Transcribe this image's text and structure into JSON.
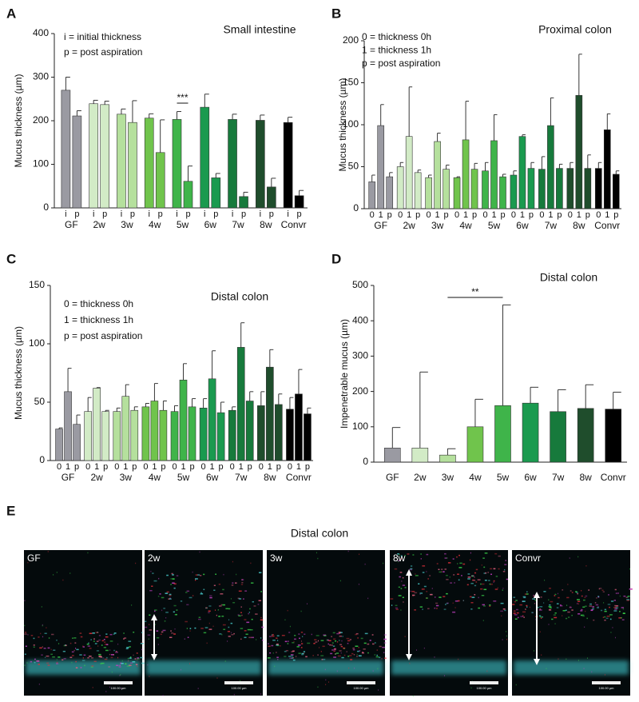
{
  "chart_data": [
    {
      "type": "bar",
      "panel": "A",
      "title": "Small intestine",
      "ylabel": "Mucus thickness (µm)",
      "legend_text": [
        "i = initial thickness",
        "p = post aspiration"
      ],
      "categories": [
        "GF",
        "2w",
        "3w",
        "4w",
        "5w",
        "6w",
        "7w",
        "8w",
        "Convr"
      ],
      "colors": [
        "#9a9aa2",
        "#d2ebc6",
        "#b5e09d",
        "#70c44c",
        "#3fb44a",
        "#1a9a4f",
        "#177a3c",
        "#1f4d2c",
        "#000000"
      ],
      "series": [
        {
          "name": "i",
          "values": [
            270,
            239,
            215,
            206,
            203,
            231,
            203,
            201,
            196
          ],
          "errors": [
            30,
            8,
            12,
            10,
            18,
            30,
            12,
            12,
            12
          ]
        },
        {
          "name": "p",
          "values": [
            211,
            237,
            196,
            127,
            61,
            69,
            26,
            48,
            28
          ],
          "errors": [
            12,
            8,
            50,
            75,
            35,
            10,
            10,
            20,
            12
          ]
        }
      ],
      "annotations": [
        {
          "text": "***"
        }
      ],
      "ylim": [
        0,
        400
      ],
      "yticks": [
        0,
        100,
        200,
        300,
        400
      ]
    },
    {
      "type": "bar",
      "panel": "B",
      "title": "Proximal colon",
      "ylabel": "Mucus thickness (µm)",
      "legend_text": [
        "0 = thickness 0h",
        "1 = thickness 1h",
        "p = post aspiration"
      ],
      "categories": [
        "GF",
        "2w",
        "3w",
        "4w",
        "5w",
        "6w",
        "7w",
        "8w",
        "Convr"
      ],
      "colors": [
        "#9a9aa2",
        "#d2ebc6",
        "#b5e09d",
        "#70c44c",
        "#3fb44a",
        "#1a9a4f",
        "#177a3c",
        "#1f4d2c",
        "#000000"
      ],
      "series": [
        {
          "name": "0",
          "values": [
            32,
            50,
            37,
            37,
            45,
            40,
            47,
            48,
            48
          ],
          "errors": [
            8,
            5,
            3,
            1,
            10,
            5,
            15,
            7,
            7
          ]
        },
        {
          "name": "1",
          "values": [
            99,
            86,
            80,
            82,
            81,
            86,
            99,
            135,
            94
          ],
          "errors": [
            25,
            59,
            10,
            46,
            31,
            2,
            33,
            49,
            19
          ]
        },
        {
          "name": "p",
          "values": [
            38,
            43,
            47,
            47,
            38,
            48,
            48,
            48,
            41
          ],
          "errors": [
            5,
            3,
            5,
            7,
            3,
            7,
            5,
            16,
            4
          ]
        }
      ],
      "ylim": [
        0,
        200
      ],
      "yticks": [
        0,
        50,
        100,
        150,
        200
      ]
    },
    {
      "type": "bar",
      "panel": "C",
      "title": "Distal colon",
      "ylabel": "Mucus thickness (µm)",
      "legend_text": [
        "0 = thickness 0h",
        "1 = thickness 1h",
        "p = post aspiration"
      ],
      "categories": [
        "GF",
        "2w",
        "3w",
        "4w",
        "5w",
        "6w",
        "7w",
        "8w",
        "Convr"
      ],
      "colors": [
        "#9a9aa2",
        "#d2ebc6",
        "#b5e09d",
        "#70c44c",
        "#3fb44a",
        "#1a9a4f",
        "#177a3c",
        "#1f4d2c",
        "#000000"
      ],
      "series": [
        {
          "name": "0",
          "values": [
            27,
            42,
            42,
            46,
            42,
            45,
            43,
            47,
            44
          ],
          "errors": [
            1,
            12,
            3,
            3,
            5,
            8,
            3,
            12,
            10
          ]
        },
        {
          "name": "1",
          "values": [
            59,
            62,
            55,
            51,
            69,
            70,
            97,
            80,
            57
          ],
          "errors": [
            20,
            0.5,
            10,
            15,
            14,
            24,
            21,
            15,
            21
          ]
        },
        {
          "name": "p",
          "values": [
            31,
            42,
            43,
            43,
            46,
            41,
            51,
            48,
            40
          ],
          "errors": [
            8,
            1,
            3,
            8,
            7,
            9,
            8,
            9,
            5
          ]
        }
      ],
      "ylim": [
        0,
        150
      ],
      "yticks": [
        0,
        50,
        100,
        150
      ]
    },
    {
      "type": "bar",
      "panel": "D",
      "title": "Distal colon",
      "ylabel": "Impenetrable mucus (µm)",
      "categories": [
        "GF",
        "2w",
        "3w",
        "4w",
        "5w",
        "6w",
        "7w",
        "8w",
        "Convr"
      ],
      "colors": [
        "#9a9aa2",
        "#d2ebc6",
        "#b5e09d",
        "#70c44c",
        "#3fb44a",
        "#1a9a4f",
        "#177a3c",
        "#1f4d2c",
        "#000000"
      ],
      "values": [
        40,
        40,
        20,
        100,
        160,
        167,
        143,
        152,
        150
      ],
      "errors": [
        58,
        215,
        18,
        78,
        285,
        45,
        62,
        67,
        48
      ],
      "annotations": [
        {
          "text": "**"
        }
      ],
      "ylim": [
        0,
        500
      ],
      "yticks": [
        0,
        100,
        200,
        300,
        400,
        500
      ]
    }
  ],
  "figure_e": {
    "panel": "E",
    "title": "Distal colon",
    "scale_label": "100.00 µm",
    "images": [
      {
        "label": "GF"
      },
      {
        "label": "2w"
      },
      {
        "label": "3w"
      },
      {
        "label": "8w"
      },
      {
        "label": "Convr"
      }
    ]
  }
}
